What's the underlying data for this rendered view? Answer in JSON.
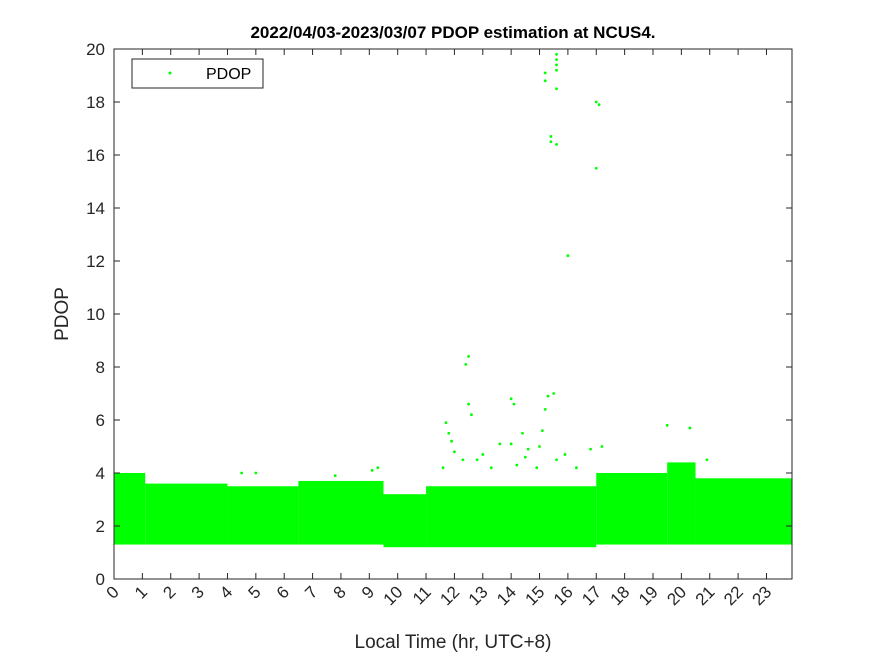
{
  "chart_data": {
    "type": "scatter",
    "title": "2022/04/03-2023/03/07 PDOP estimation at NCUS4.",
    "xlabel": "Local Time (hr, UTC+8)",
    "ylabel": "PDOP",
    "xlim": [
      0,
      23.9
    ],
    "ylim": [
      0,
      20
    ],
    "x_ticks": [
      0,
      1,
      2,
      3,
      4,
      5,
      6,
      7,
      8,
      9,
      10,
      11,
      12,
      13,
      14,
      15,
      16,
      17,
      18,
      19,
      20,
      21,
      22,
      23
    ],
    "x_tick_labels": [
      "0",
      "1",
      "2",
      "3",
      "4",
      "5",
      "6",
      "7",
      "8",
      "9",
      "10",
      "11",
      "12",
      "13",
      "14",
      "15",
      "16",
      "17",
      "18",
      "19",
      "20",
      "21",
      "22",
      "23"
    ],
    "y_ticks": [
      0,
      2,
      4,
      6,
      8,
      10,
      12,
      14,
      16,
      18,
      20
    ],
    "y_tick_labels": [
      "0",
      "2",
      "4",
      "6",
      "8",
      "10",
      "12",
      "14",
      "16",
      "18",
      "20"
    ],
    "grid": false,
    "legend": {
      "position": "top-left",
      "entries": [
        "PDOP"
      ]
    },
    "color": "#00ff00",
    "series": [
      {
        "name": "PDOP",
        "dense_band": [
          {
            "x": [
              0,
              1.1
            ],
            "y": [
              1.3,
              4.0
            ]
          },
          {
            "x": [
              1.1,
              4.0
            ],
            "y": [
              1.3,
              3.6
            ]
          },
          {
            "x": [
              4.0,
              6.5
            ],
            "y": [
              1.3,
              3.5
            ]
          },
          {
            "x": [
              6.5,
              9.5
            ],
            "y": [
              1.3,
              3.7
            ]
          },
          {
            "x": [
              9.5,
              11.0
            ],
            "y": [
              1.2,
              3.2
            ]
          },
          {
            "x": [
              11.0,
              17.0
            ],
            "y": [
              1.2,
              3.5
            ]
          },
          {
            "x": [
              17.0,
              19.5
            ],
            "y": [
              1.3,
              4.0
            ]
          },
          {
            "x": [
              19.5,
              20.5
            ],
            "y": [
              1.3,
              4.4
            ]
          },
          {
            "x": [
              20.5,
              23.9
            ],
            "y": [
              1.3,
              3.8
            ]
          }
        ],
        "outliers": [
          {
            "x": 15.6,
            "y": 19.8
          },
          {
            "x": 15.6,
            "y": 19.6
          },
          {
            "x": 15.6,
            "y": 19.4
          },
          {
            "x": 15.6,
            "y": 19.2
          },
          {
            "x": 15.2,
            "y": 19.1
          },
          {
            "x": 15.2,
            "y": 18.8
          },
          {
            "x": 15.6,
            "y": 18.5
          },
          {
            "x": 17.0,
            "y": 18.0
          },
          {
            "x": 17.1,
            "y": 17.9
          },
          {
            "x": 15.4,
            "y": 16.7
          },
          {
            "x": 15.4,
            "y": 16.5
          },
          {
            "x": 15.6,
            "y": 16.4
          },
          {
            "x": 17.0,
            "y": 15.5
          },
          {
            "x": 16.0,
            "y": 12.2
          },
          {
            "x": 12.5,
            "y": 8.4
          },
          {
            "x": 12.4,
            "y": 8.1
          },
          {
            "x": 15.5,
            "y": 7.0
          },
          {
            "x": 15.3,
            "y": 6.9
          },
          {
            "x": 14.0,
            "y": 6.8
          },
          {
            "x": 14.1,
            "y": 6.6
          },
          {
            "x": 12.5,
            "y": 6.6
          },
          {
            "x": 15.2,
            "y": 6.4
          },
          {
            "x": 11.7,
            "y": 5.9
          },
          {
            "x": 11.8,
            "y": 5.5
          },
          {
            "x": 14.4,
            "y": 5.5
          },
          {
            "x": 11.9,
            "y": 5.2
          },
          {
            "x": 14.0,
            "y": 5.1
          },
          {
            "x": 15.0,
            "y": 5.0
          },
          {
            "x": 12.0,
            "y": 4.8
          },
          {
            "x": 14.6,
            "y": 4.9
          },
          {
            "x": 19.5,
            "y": 5.8
          },
          {
            "x": 20.3,
            "y": 5.7
          },
          {
            "x": 17.2,
            "y": 5.0
          },
          {
            "x": 13.6,
            "y": 5.1
          },
          {
            "x": 16.8,
            "y": 4.9
          },
          {
            "x": 12.3,
            "y": 4.5
          },
          {
            "x": 12.8,
            "y": 4.5
          },
          {
            "x": 13.0,
            "y": 4.7
          },
          {
            "x": 15.6,
            "y": 4.5
          },
          {
            "x": 15.9,
            "y": 4.7
          },
          {
            "x": 16.3,
            "y": 4.2
          },
          {
            "x": 20.9,
            "y": 4.5
          },
          {
            "x": 9.1,
            "y": 4.1
          },
          {
            "x": 9.3,
            "y": 4.2
          },
          {
            "x": 4.5,
            "y": 4.0
          },
          {
            "x": 5.0,
            "y": 4.0
          },
          {
            "x": 7.8,
            "y": 3.9
          },
          {
            "x": 14.2,
            "y": 4.3
          },
          {
            "x": 13.3,
            "y": 4.2
          },
          {
            "x": 14.5,
            "y": 4.6
          },
          {
            "x": 15.1,
            "y": 5.6
          },
          {
            "x": 14.9,
            "y": 4.2
          },
          {
            "x": 12.6,
            "y": 6.2
          },
          {
            "x": 11.6,
            "y": 4.2
          }
        ]
      }
    ]
  }
}
